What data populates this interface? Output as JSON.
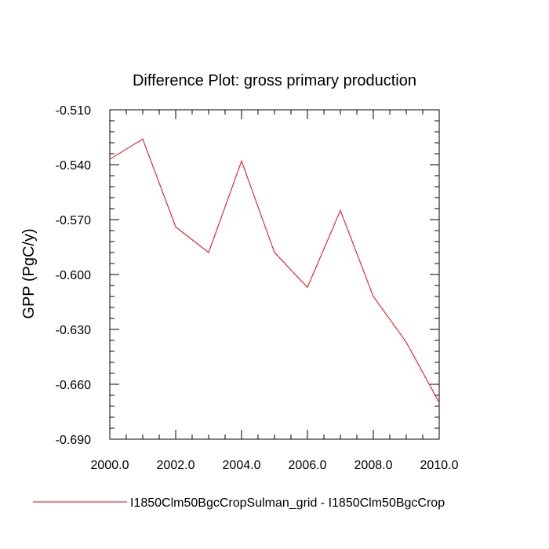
{
  "chart_data": {
    "type": "line",
    "title": "Difference Plot: gross primary production",
    "xlabel": "",
    "ylabel": "GPP  (PgC/y)",
    "xlim": [
      2000,
      2010
    ],
    "ylim": [
      -0.69,
      -0.51
    ],
    "x_ticks": [
      2000,
      2002,
      2004,
      2006,
      2008,
      2010
    ],
    "x_tick_labels": [
      "2000.0",
      "2002.0",
      "2004.0",
      "2006.0",
      "2008.0",
      "2010.0"
    ],
    "y_ticks": [
      -0.51,
      -0.54,
      -0.57,
      -0.6,
      -0.63,
      -0.66,
      -0.69
    ],
    "y_tick_labels": [
      "-0.510",
      "-0.540",
      "-0.570",
      "-0.600",
      "-0.630",
      "-0.660",
      "-0.690"
    ],
    "grid": false,
    "legend_position": "bottom",
    "series": [
      {
        "name": "I1850Clm50BgcCropSulman_grid - I1850Clm50BgcCrop",
        "color": "#e8000b",
        "x": [
          2000,
          2001,
          2002,
          2003,
          2004,
          2005,
          2006,
          2007,
          2008,
          2009,
          2010
        ],
        "y": [
          -0.537,
          -0.526,
          -0.574,
          -0.588,
          -0.538,
          -0.588,
          -0.607,
          -0.565,
          -0.612,
          -0.637,
          -0.67
        ]
      }
    ]
  }
}
